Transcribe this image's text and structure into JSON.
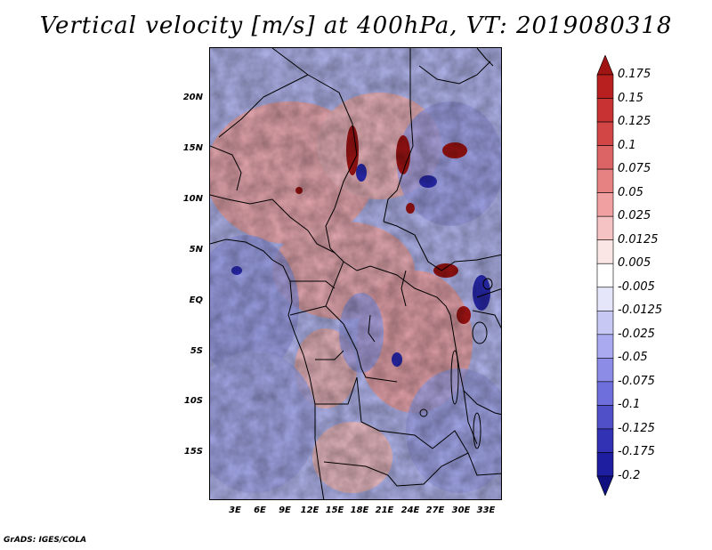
{
  "title": "Vertical velocity [m/s] at 400hPa, VT: 2019080318",
  "footer": "GrADS: IGES/COLA",
  "lat_labels": [
    "20N",
    "15N",
    "10N",
    "5N",
    "EQ",
    "5S",
    "10S",
    "15S"
  ],
  "lon_labels": [
    "3E",
    "6E",
    "9E",
    "12E",
    "15E",
    "18E",
    "21E",
    "24E",
    "27E",
    "30E",
    "33E"
  ],
  "colorbar": {
    "labels": [
      "0.175",
      "0.15",
      "0.125",
      "0.1",
      "0.075",
      "0.05",
      "0.025",
      "0.0125",
      "0.005",
      "-0.005",
      "-0.0125",
      "-0.025",
      "-0.05",
      "-0.075",
      "-0.1",
      "-0.125",
      "-0.175",
      "-0.2"
    ],
    "colors": [
      "#a01414",
      "#b82020",
      "#c83232",
      "#d24646",
      "#dc6464",
      "#e68282",
      "#f0a0a0",
      "#f5c3c3",
      "#fbe6e6",
      "#ffffff",
      "#e6e6fb",
      "#c8c8f5",
      "#aaaaf0",
      "#8c8ce6",
      "#6e6edc",
      "#5050c8",
      "#3232b4",
      "#1e1ea0",
      "#0f0f80"
    ]
  }
}
